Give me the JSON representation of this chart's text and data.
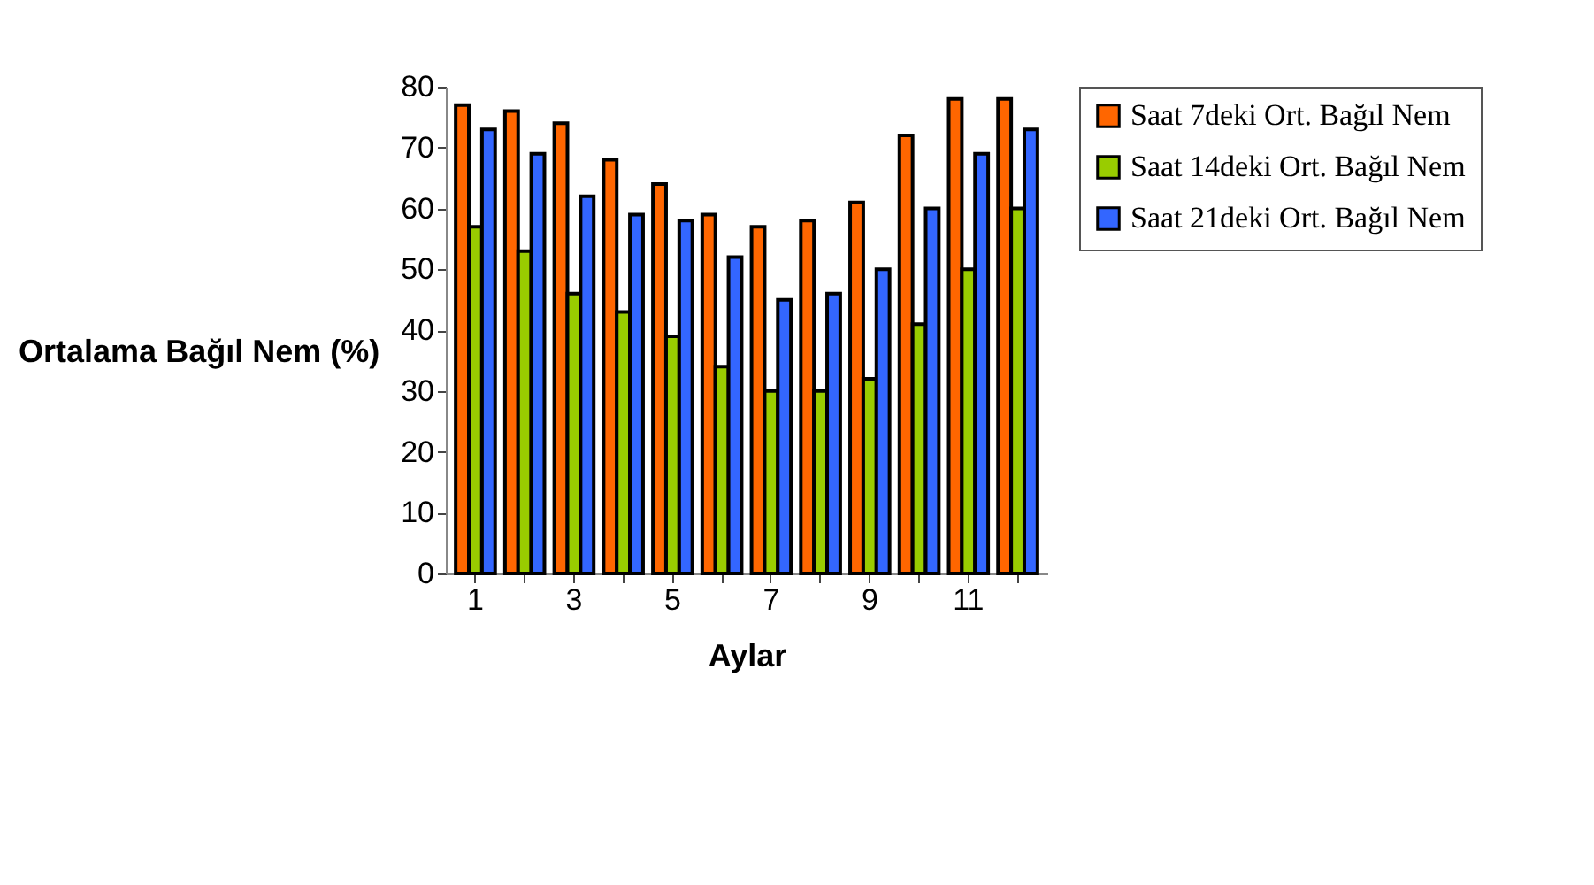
{
  "chart_data": {
    "type": "bar",
    "xlabel": "Aylar",
    "ylabel": "Ortalama Bağıl Nem (%)",
    "categories": [
      "1",
      null,
      "3",
      null,
      "5",
      null,
      "7",
      null,
      "9",
      null,
      "11",
      null
    ],
    "series": [
      {
        "name": "Saat 7deki Ort. Bağıl Nem",
        "color": "#ff6600",
        "values": [
          77,
          76,
          74,
          68,
          64,
          59,
          57,
          58,
          61,
          72,
          78,
          78
        ]
      },
      {
        "name": "Saat 14deki Ort. Bağıl Nem",
        "color": "#99cc00",
        "values": [
          57,
          53,
          46,
          43,
          39,
          34,
          30,
          30,
          32,
          41,
          50,
          60
        ]
      },
      {
        "name": "Saat 21deki Ort. Bağıl Nem",
        "color": "#3366ff",
        "values": [
          73,
          69,
          62,
          59,
          58,
          52,
          45,
          46,
          50,
          60,
          69,
          73
        ]
      }
    ],
    "ylim": [
      0,
      80
    ],
    "yticks": [
      0,
      10,
      20,
      30,
      40,
      50,
      60,
      70,
      80
    ],
    "grid": false,
    "legend": "right"
  }
}
